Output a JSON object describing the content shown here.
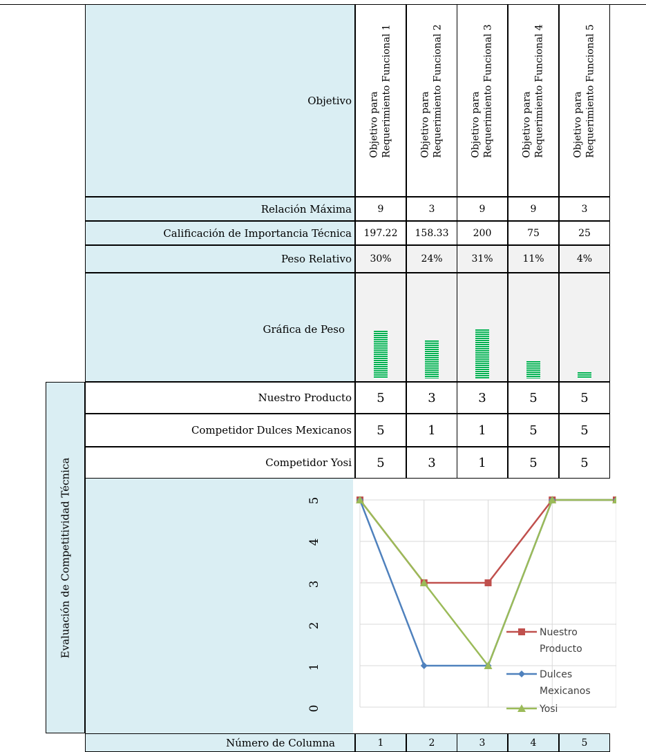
{
  "objective_header": "Objetivo",
  "columns": [
    {
      "line1": "Objetivo para",
      "line2": "Requerimiento Funcional 1"
    },
    {
      "line1": "Objetivo para",
      "line2": "Requerimiento Funcional 2"
    },
    {
      "line1": "Objetivo para",
      "line2": "Requerimiento Funcional 3"
    },
    {
      "line1": "Objetivo para",
      "line2": "Requerimiento Funcional 4"
    },
    {
      "line1": "Objetivo para",
      "line2": "Requerimiento Funcional 5"
    }
  ],
  "rows": {
    "max_relation": {
      "label": "Relación Máxima",
      "values": [
        "9",
        "3",
        "9",
        "9",
        "3"
      ]
    },
    "importance": {
      "label": "Calificación de Importancia Técnica",
      "values": [
        "197.22",
        "158.33",
        "200",
        "75",
        "25"
      ]
    },
    "relative_weight": {
      "label": "Peso Relativo",
      "values": [
        "30%",
        "24%",
        "31%",
        "11%",
        "4%"
      ],
      "fractions": [
        0.3,
        0.24,
        0.31,
        0.11,
        0.04
      ]
    },
    "weight_chart": {
      "label": "Gráfica de Peso"
    },
    "our_product": {
      "label": "Nuestro Producto",
      "values": [
        "5",
        "3",
        "3",
        "5",
        "5"
      ]
    },
    "competitor_dm": {
      "label": "Competidor Dulces Mexicanos",
      "values": [
        "5",
        "1",
        "1",
        "5",
        "5"
      ]
    },
    "competitor_yosi": {
      "label": "Competidor Yosi",
      "values": [
        "5",
        "3",
        "1",
        "5",
        "5"
      ]
    },
    "column_number": {
      "label": "Número de Columna",
      "values": [
        "1",
        "2",
        "3",
        "4",
        "5"
      ]
    }
  },
  "section_label": "Evaluación de Competitividad Técnica",
  "weight_bar_color": "#00b050",
  "chart_data": {
    "type": "line",
    "x": [
      1,
      2,
      3,
      4,
      5
    ],
    "ylim": [
      0,
      5
    ],
    "yticks": [
      "0",
      "1",
      "2",
      "3",
      "4",
      "5"
    ],
    "grid": true,
    "legend": "right",
    "series": [
      {
        "name": "Nuestro Producto",
        "values": [
          5,
          3,
          3,
          5,
          5
        ],
        "color": "#c0504d",
        "marker": "square"
      },
      {
        "name": "Dulces Mexicanos",
        "values": [
          5,
          1,
          1,
          5,
          5
        ],
        "color": "#4f81bd",
        "marker": "diamond"
      },
      {
        "name": "Yosi",
        "values": [
          5,
          3,
          1,
          5,
          5
        ],
        "color": "#9bbb59",
        "marker": "triangle"
      }
    ]
  }
}
